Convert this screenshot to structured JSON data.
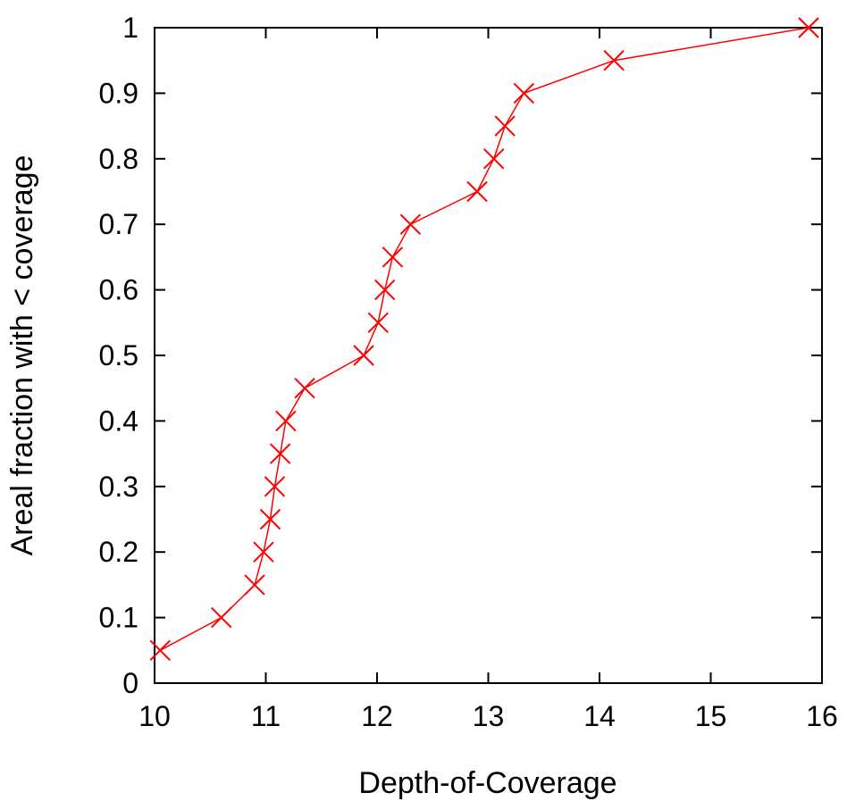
{
  "chart_data": {
    "type": "line",
    "title": "",
    "xlabel": "Depth-of-Coverage",
    "ylabel": "Areal fraction with < coverage",
    "xlim": [
      10,
      16
    ],
    "ylim": [
      0,
      1
    ],
    "x_ticks": [
      "10",
      "11",
      "12",
      "13",
      "14",
      "15",
      "16"
    ],
    "y_ticks": [
      "0",
      "0.1",
      "0.2",
      "0.3",
      "0.4",
      "0.5",
      "0.6",
      "0.7",
      "0.8",
      "0.9",
      "1"
    ],
    "grid": false,
    "legend": "none",
    "marker": "x",
    "color": "#ff0000",
    "series": [
      {
        "x": [
          10.05,
          10.6,
          10.9,
          10.98,
          11.04,
          11.08,
          11.13,
          11.18,
          11.35,
          11.88,
          12.01,
          12.07,
          12.14,
          12.3,
          12.9,
          13.05,
          13.15,
          13.32,
          14.13,
          15.88
        ],
        "y": [
          0.05,
          0.1,
          0.15,
          0.2,
          0.25,
          0.3,
          0.35,
          0.4,
          0.45,
          0.5,
          0.55,
          0.6,
          0.65,
          0.7,
          0.75,
          0.8,
          0.85,
          0.9,
          0.95,
          1.0
        ]
      }
    ]
  }
}
